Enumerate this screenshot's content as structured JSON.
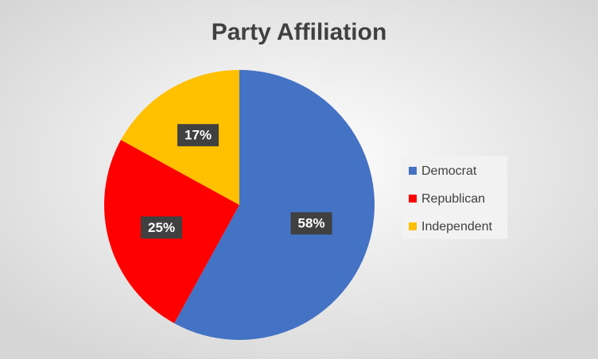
{
  "chart_data": {
    "type": "pie",
    "title": "Party Affiliation",
    "categories": [
      "Democrat",
      "Republican",
      "Independent"
    ],
    "values": [
      58,
      25,
      17
    ],
    "value_labels": [
      "58%",
      "25%",
      "17%"
    ],
    "colors": [
      "#4472c4",
      "#ff0000",
      "#ffc000"
    ],
    "legend": "right"
  }
}
